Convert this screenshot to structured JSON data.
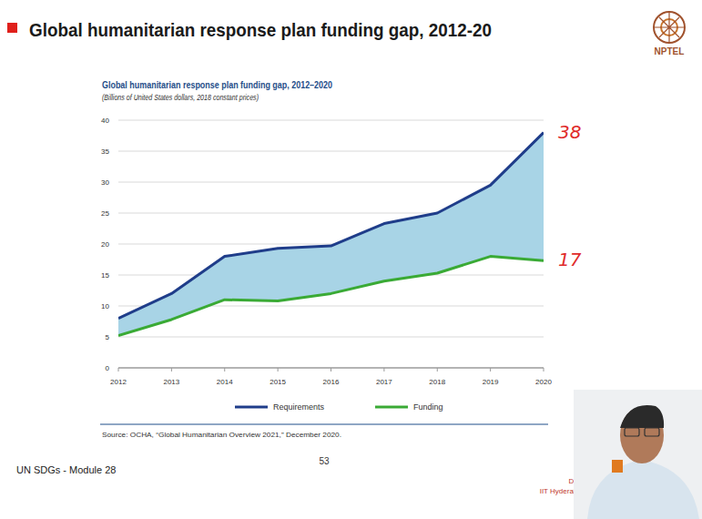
{
  "slide": {
    "title": "Global humanitarian response plan funding gap, 2012-20",
    "logo": "NPTEL",
    "footer": "UN SDGs - Module 28",
    "page": "53",
    "author": "Dr. Shiva Ji",
    "affiliation": "IIT Hyderabad, India"
  },
  "chart_data": {
    "type": "line",
    "title": "Global humanitarian response plan funding gap, 2012–2020",
    "subtitle": "(Billions of United States dollars, 2018 constant prices)",
    "source": "Source: OCHA, “Global Humanitarian Overview 2021,” December 2020.",
    "x": [
      2012,
      2013,
      2014,
      2015,
      2016,
      2017,
      2018,
      2019,
      2020
    ],
    "xlim": [
      2012,
      2020
    ],
    "xticks": [
      2012,
      2013,
      2014,
      2015,
      2016,
      2017,
      2018,
      2019,
      2020
    ],
    "ylim": [
      0,
      40
    ],
    "yticks": [
      0,
      5,
      10,
      15,
      20,
      25,
      30,
      35,
      40
    ],
    "grid": true,
    "legend": "bottom",
    "series": [
      {
        "name": "Requirements",
        "color": "#1f3d8a",
        "values": [
          8,
          12,
          18,
          19.3,
          19.7,
          23.3,
          25,
          29.5,
          38
        ]
      },
      {
        "name": "Funding",
        "color": "#3aaa35",
        "values": [
          5.2,
          7.8,
          11,
          10.8,
          12,
          14,
          15.3,
          18,
          17.3
        ]
      }
    ],
    "annotations": [
      "38",
      "17"
    ]
  }
}
